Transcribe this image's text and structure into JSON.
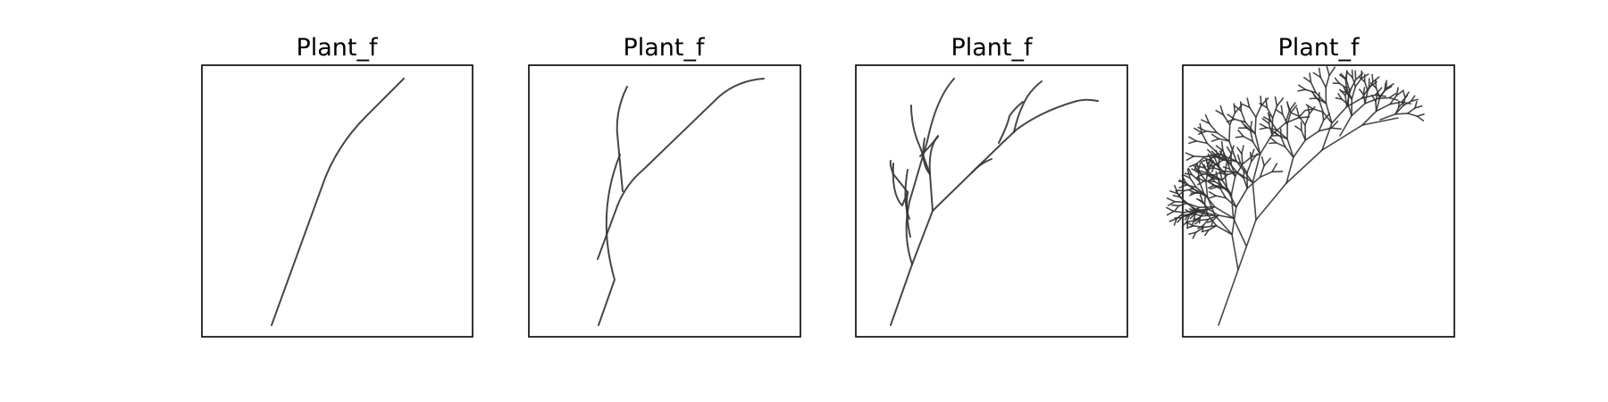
{
  "chart_data": [
    {
      "type": "line",
      "title": "Plant_f",
      "xlabel": "",
      "ylabel": "",
      "iteration": 1,
      "grid": false,
      "axes_ticks": false
    },
    {
      "type": "line",
      "title": "Plant_f",
      "xlabel": "",
      "ylabel": "",
      "iteration": 2,
      "grid": false,
      "axes_ticks": false
    },
    {
      "type": "line",
      "title": "Plant_f",
      "xlabel": "",
      "ylabel": "",
      "iteration": 3,
      "grid": false,
      "axes_ticks": false
    },
    {
      "type": "line",
      "title": "Plant_f",
      "xlabel": "",
      "ylabel": "",
      "iteration": 4,
      "grid": false,
      "axes_ticks": false
    }
  ]
}
